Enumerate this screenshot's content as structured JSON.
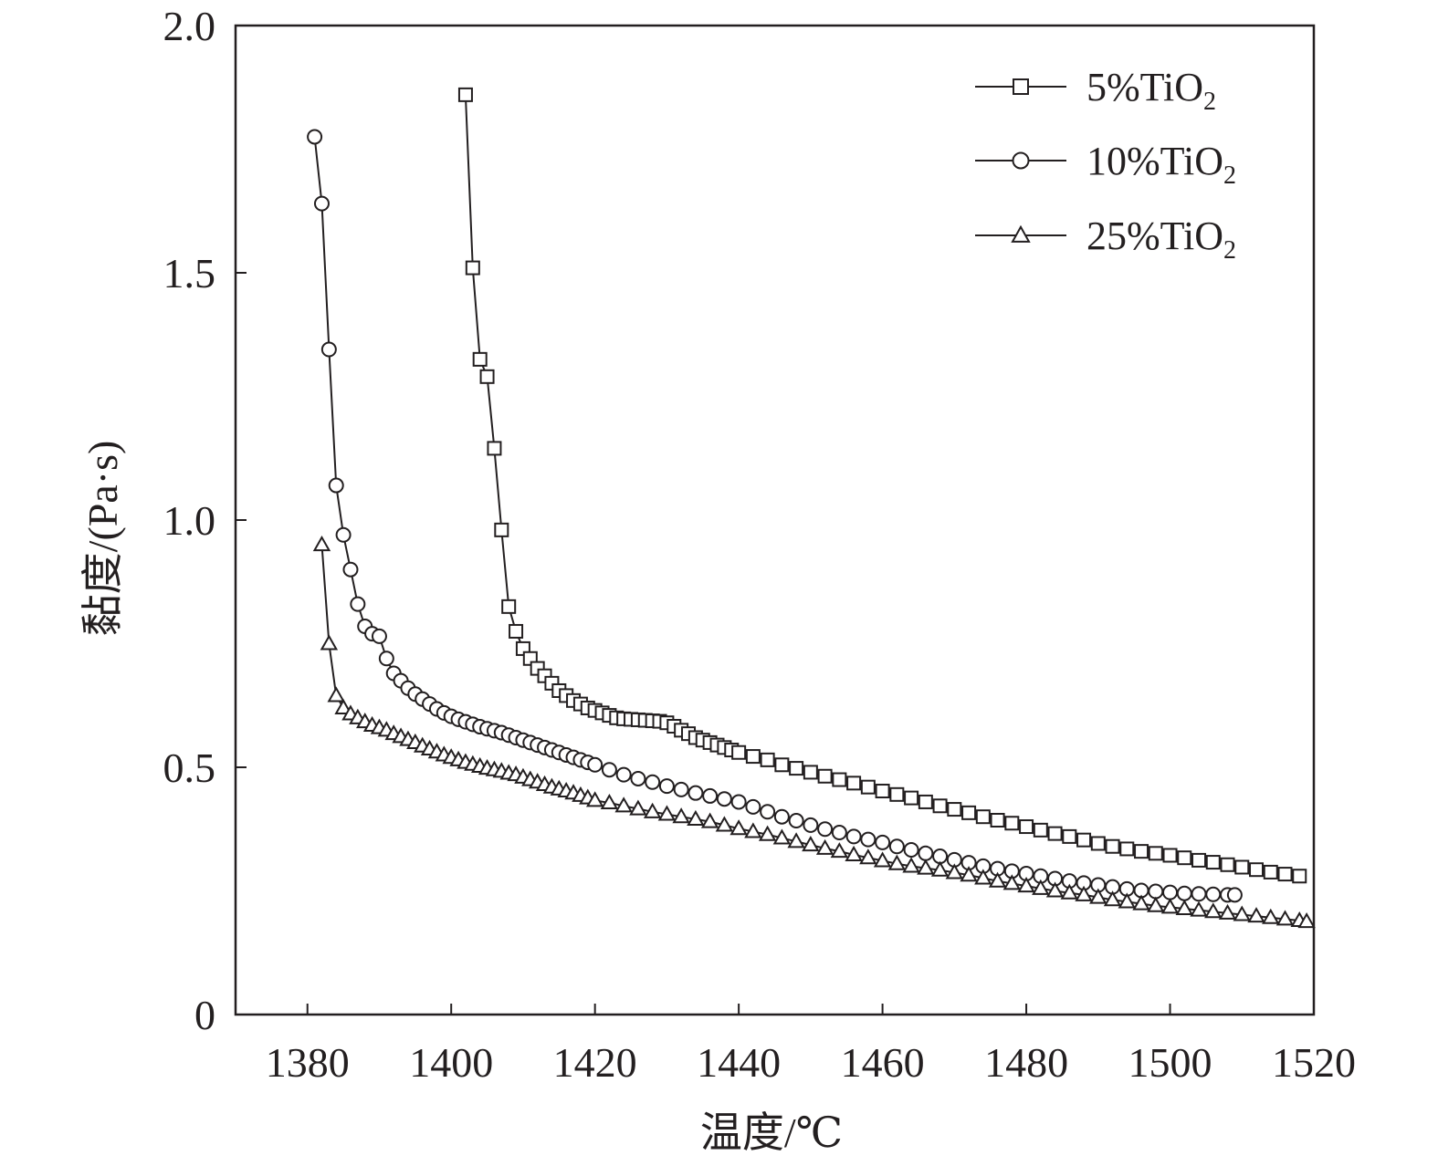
{
  "chart_data": {
    "type": "line",
    "xlabel": "温度/℃",
    "ylabel": "黏度/(Pa·s)",
    "xlim": [
      1370,
      1520
    ],
    "ylim": [
      0,
      2.0
    ],
    "x_ticks": [
      1380,
      1400,
      1420,
      1440,
      1460,
      1480,
      1500,
      1520
    ],
    "x_tick_labels": [
      "1380",
      "1400",
      "1420",
      "1440",
      "1460",
      "1480",
      "1500",
      "1520"
    ],
    "y_ticks": [
      0,
      0.5,
      1.0,
      1.5,
      2.0
    ],
    "y_tick_labels": [
      "0",
      "0.5",
      "1.0",
      "1.5",
      "2.0"
    ],
    "grid": false,
    "legend_position": "top-right",
    "series": [
      {
        "name": "5%TiO2",
        "name_base": "5%TiO",
        "name_sub": "2",
        "marker": "square",
        "points": [
          [
            1402,
            1.86
          ],
          [
            1403,
            1.51
          ],
          [
            1404,
            1.325
          ],
          [
            1405,
            1.29
          ],
          [
            1406,
            1.145
          ],
          [
            1407,
            0.98
          ],
          [
            1408,
            0.825
          ],
          [
            1409,
            0.775
          ],
          [
            1410,
            0.74
          ],
          [
            1411,
            0.72
          ],
          [
            1412,
            0.7
          ],
          [
            1413,
            0.685
          ],
          [
            1414,
            0.67
          ],
          [
            1415,
            0.655
          ],
          [
            1416,
            0.645
          ],
          [
            1417,
            0.635
          ],
          [
            1418,
            0.628
          ],
          [
            1419,
            0.62
          ],
          [
            1420,
            0.615
          ],
          [
            1421,
            0.61
          ],
          [
            1422,
            0.605
          ],
          [
            1423,
            0.6
          ],
          [
            1424,
            0.598
          ],
          [
            1425,
            0.597
          ],
          [
            1426,
            0.596
          ],
          [
            1427,
            0.595
          ],
          [
            1428,
            0.594
          ],
          [
            1429,
            0.593
          ],
          [
            1430,
            0.59
          ],
          [
            1431,
            0.583
          ],
          [
            1432,
            0.575
          ],
          [
            1433,
            0.568
          ],
          [
            1434,
            0.56
          ],
          [
            1435,
            0.555
          ],
          [
            1436,
            0.55
          ],
          [
            1437,
            0.545
          ],
          [
            1438,
            0.54
          ],
          [
            1439,
            0.535
          ],
          [
            1440,
            0.53
          ],
          [
            1442,
            0.522
          ],
          [
            1444,
            0.515
          ],
          [
            1446,
            0.505
          ],
          [
            1448,
            0.498
          ],
          [
            1450,
            0.49
          ],
          [
            1452,
            0.482
          ],
          [
            1454,
            0.475
          ],
          [
            1456,
            0.468
          ],
          [
            1458,
            0.46
          ],
          [
            1460,
            0.452
          ],
          [
            1462,
            0.445
          ],
          [
            1464,
            0.438
          ],
          [
            1466,
            0.43
          ],
          [
            1468,
            0.422
          ],
          [
            1470,
            0.415
          ],
          [
            1472,
            0.408
          ],
          [
            1474,
            0.4
          ],
          [
            1476,
            0.393
          ],
          [
            1478,
            0.387
          ],
          [
            1480,
            0.38
          ],
          [
            1482,
            0.373
          ],
          [
            1484,
            0.366
          ],
          [
            1486,
            0.36
          ],
          [
            1488,
            0.353
          ],
          [
            1490,
            0.346
          ],
          [
            1492,
            0.34
          ],
          [
            1494,
            0.335
          ],
          [
            1496,
            0.33
          ],
          [
            1498,
            0.326
          ],
          [
            1500,
            0.322
          ],
          [
            1502,
            0.317
          ],
          [
            1504,
            0.312
          ],
          [
            1506,
            0.308
          ],
          [
            1508,
            0.303
          ],
          [
            1510,
            0.298
          ],
          [
            1512,
            0.293
          ],
          [
            1514,
            0.288
          ],
          [
            1516,
            0.284
          ],
          [
            1518,
            0.28
          ]
        ]
      },
      {
        "name": "10%TiO2",
        "name_base": "10%TiO",
        "name_sub": "2",
        "marker": "circle",
        "points": [
          [
            1381,
            1.775
          ],
          [
            1382,
            1.64
          ],
          [
            1383,
            1.345
          ],
          [
            1384,
            1.07
          ],
          [
            1385,
            0.97
          ],
          [
            1386,
            0.9
          ],
          [
            1387,
            0.83
          ],
          [
            1388,
            0.785
          ],
          [
            1389,
            0.77
          ],
          [
            1390,
            0.765
          ],
          [
            1391,
            0.72
          ],
          [
            1392,
            0.69
          ],
          [
            1393,
            0.675
          ],
          [
            1394,
            0.66
          ],
          [
            1395,
            0.648
          ],
          [
            1396,
            0.638
          ],
          [
            1397,
            0.628
          ],
          [
            1398,
            0.618
          ],
          [
            1399,
            0.61
          ],
          [
            1400,
            0.603
          ],
          [
            1401,
            0.597
          ],
          [
            1402,
            0.592
          ],
          [
            1403,
            0.587
          ],
          [
            1404,
            0.582
          ],
          [
            1405,
            0.578
          ],
          [
            1406,
            0.574
          ],
          [
            1407,
            0.57
          ],
          [
            1408,
            0.565
          ],
          [
            1409,
            0.56
          ],
          [
            1410,
            0.555
          ],
          [
            1411,
            0.55
          ],
          [
            1412,
            0.545
          ],
          [
            1413,
            0.54
          ],
          [
            1414,
            0.535
          ],
          [
            1415,
            0.53
          ],
          [
            1416,
            0.525
          ],
          [
            1417,
            0.52
          ],
          [
            1418,
            0.515
          ],
          [
            1419,
            0.51
          ],
          [
            1420,
            0.505
          ],
          [
            1422,
            0.495
          ],
          [
            1424,
            0.485
          ],
          [
            1426,
            0.477
          ],
          [
            1428,
            0.47
          ],
          [
            1430,
            0.462
          ],
          [
            1432,
            0.455
          ],
          [
            1434,
            0.448
          ],
          [
            1436,
            0.442
          ],
          [
            1438,
            0.436
          ],
          [
            1440,
            0.43
          ],
          [
            1442,
            0.42
          ],
          [
            1444,
            0.41
          ],
          [
            1446,
            0.4
          ],
          [
            1448,
            0.392
          ],
          [
            1450,
            0.383
          ],
          [
            1452,
            0.375
          ],
          [
            1454,
            0.368
          ],
          [
            1456,
            0.36
          ],
          [
            1458,
            0.354
          ],
          [
            1460,
            0.348
          ],
          [
            1462,
            0.34
          ],
          [
            1464,
            0.333
          ],
          [
            1466,
            0.326
          ],
          [
            1468,
            0.32
          ],
          [
            1470,
            0.313
          ],
          [
            1472,
            0.307
          ],
          [
            1474,
            0.3
          ],
          [
            1476,
            0.295
          ],
          [
            1478,
            0.29
          ],
          [
            1480,
            0.285
          ],
          [
            1482,
            0.28
          ],
          [
            1484,
            0.275
          ],
          [
            1486,
            0.27
          ],
          [
            1488,
            0.266
          ],
          [
            1490,
            0.262
          ],
          [
            1492,
            0.258
          ],
          [
            1494,
            0.254
          ],
          [
            1496,
            0.251
          ],
          [
            1498,
            0.249
          ],
          [
            1500,
            0.247
          ],
          [
            1502,
            0.245
          ],
          [
            1504,
            0.244
          ],
          [
            1506,
            0.243
          ],
          [
            1508,
            0.242
          ],
          [
            1509,
            0.242
          ]
        ]
      },
      {
        "name": "25%TiO2",
        "name_base": "25%TiO",
        "name_sub": "2",
        "marker": "triangle",
        "points": [
          [
            1382,
            0.95
          ],
          [
            1383,
            0.75
          ],
          [
            1384,
            0.645
          ],
          [
            1385,
            0.62
          ],
          [
            1386,
            0.608
          ],
          [
            1387,
            0.6
          ],
          [
            1388,
            0.592
          ],
          [
            1389,
            0.585
          ],
          [
            1390,
            0.58
          ],
          [
            1391,
            0.575
          ],
          [
            1392,
            0.568
          ],
          [
            1393,
            0.562
          ],
          [
            1394,
            0.556
          ],
          [
            1395,
            0.55
          ],
          [
            1396,
            0.543
          ],
          [
            1397,
            0.537
          ],
          [
            1398,
            0.531
          ],
          [
            1399,
            0.525
          ],
          [
            1400,
            0.52
          ],
          [
            1401,
            0.515
          ],
          [
            1402,
            0.51
          ],
          [
            1403,
            0.506
          ],
          [
            1404,
            0.502
          ],
          [
            1405,
            0.498
          ],
          [
            1406,
            0.495
          ],
          [
            1407,
            0.492
          ],
          [
            1408,
            0.488
          ],
          [
            1409,
            0.485
          ],
          [
            1410,
            0.48
          ],
          [
            1411,
            0.475
          ],
          [
            1412,
            0.47
          ],
          [
            1413,
            0.465
          ],
          [
            1414,
            0.46
          ],
          [
            1415,
            0.456
          ],
          [
            1416,
            0.452
          ],
          [
            1417,
            0.448
          ],
          [
            1418,
            0.443
          ],
          [
            1419,
            0.438
          ],
          [
            1420,
            0.433
          ],
          [
            1422,
            0.428
          ],
          [
            1424,
            0.422
          ],
          [
            1426,
            0.416
          ],
          [
            1428,
            0.41
          ],
          [
            1430,
            0.405
          ],
          [
            1432,
            0.4
          ],
          [
            1434,
            0.395
          ],
          [
            1436,
            0.39
          ],
          [
            1438,
            0.383
          ],
          [
            1440,
            0.376
          ],
          [
            1442,
            0.37
          ],
          [
            1444,
            0.364
          ],
          [
            1446,
            0.357
          ],
          [
            1448,
            0.35
          ],
          [
            1450,
            0.343
          ],
          [
            1452,
            0.336
          ],
          [
            1454,
            0.33
          ],
          [
            1456,
            0.323
          ],
          [
            1458,
            0.317
          ],
          [
            1460,
            0.311
          ],
          [
            1462,
            0.305
          ],
          [
            1464,
            0.3
          ],
          [
            1466,
            0.296
          ],
          [
            1468,
            0.292
          ],
          [
            1470,
            0.287
          ],
          [
            1472,
            0.282
          ],
          [
            1474,
            0.276
          ],
          [
            1476,
            0.27
          ],
          [
            1478,
            0.265
          ],
          [
            1480,
            0.26
          ],
          [
            1482,
            0.255
          ],
          [
            1484,
            0.25
          ],
          [
            1486,
            0.246
          ],
          [
            1488,
            0.242
          ],
          [
            1490,
            0.237
          ],
          [
            1492,
            0.232
          ],
          [
            1494,
            0.228
          ],
          [
            1496,
            0.224
          ],
          [
            1498,
            0.22
          ],
          [
            1500,
            0.217
          ],
          [
            1502,
            0.214
          ],
          [
            1504,
            0.211
          ],
          [
            1506,
            0.208
          ],
          [
            1508,
            0.205
          ],
          [
            1510,
            0.202
          ],
          [
            1512,
            0.199
          ],
          [
            1514,
            0.196
          ],
          [
            1516,
            0.193
          ],
          [
            1518,
            0.19
          ],
          [
            1519,
            0.188
          ]
        ]
      }
    ]
  }
}
